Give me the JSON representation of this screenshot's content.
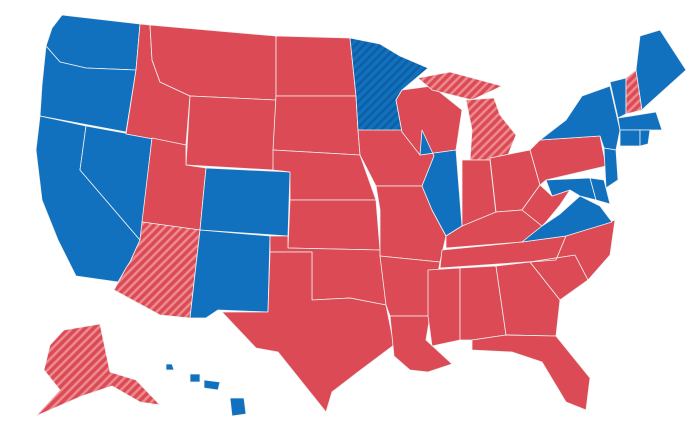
{
  "colors": {
    "red": "#dc4b55",
    "blue": "#1271bf",
    "red_hatch_stripe": "#ec8a8f",
    "blue_hatch_stripe": "#0d5ea3",
    "border": "#f2f2f2"
  },
  "states": [
    {
      "id": "WA",
      "party": "blue",
      "hatched": false
    },
    {
      "id": "OR",
      "party": "blue",
      "hatched": false
    },
    {
      "id": "CA",
      "party": "blue",
      "hatched": false
    },
    {
      "id": "NV",
      "party": "blue",
      "hatched": false
    },
    {
      "id": "ID",
      "party": "red",
      "hatched": false
    },
    {
      "id": "MT",
      "party": "red",
      "hatched": false
    },
    {
      "id": "WY",
      "party": "red",
      "hatched": false
    },
    {
      "id": "UT",
      "party": "red",
      "hatched": false
    },
    {
      "id": "AZ",
      "party": "red",
      "hatched": true
    },
    {
      "id": "CO",
      "party": "blue",
      "hatched": false
    },
    {
      "id": "NM",
      "party": "blue",
      "hatched": false
    },
    {
      "id": "ND",
      "party": "red",
      "hatched": false
    },
    {
      "id": "SD",
      "party": "red",
      "hatched": false
    },
    {
      "id": "NE",
      "party": "red",
      "hatched": false
    },
    {
      "id": "KS",
      "party": "red",
      "hatched": false
    },
    {
      "id": "OK",
      "party": "red",
      "hatched": false
    },
    {
      "id": "TX",
      "party": "red",
      "hatched": false
    },
    {
      "id": "MN",
      "party": "blue",
      "hatched": true
    },
    {
      "id": "IA",
      "party": "red",
      "hatched": false
    },
    {
      "id": "MO",
      "party": "red",
      "hatched": false
    },
    {
      "id": "AR",
      "party": "red",
      "hatched": false
    },
    {
      "id": "LA",
      "party": "red",
      "hatched": false
    },
    {
      "id": "WI",
      "party": "red",
      "hatched": false
    },
    {
      "id": "MI",
      "party": "red",
      "hatched": true
    },
    {
      "id": "IL",
      "party": "blue",
      "hatched": false
    },
    {
      "id": "IN",
      "party": "red",
      "hatched": false
    },
    {
      "id": "OH",
      "party": "red",
      "hatched": false
    },
    {
      "id": "KY",
      "party": "red",
      "hatched": false
    },
    {
      "id": "TN",
      "party": "red",
      "hatched": false
    },
    {
      "id": "MS",
      "party": "red",
      "hatched": false
    },
    {
      "id": "AL",
      "party": "red",
      "hatched": false
    },
    {
      "id": "GA",
      "party": "red",
      "hatched": false
    },
    {
      "id": "FL",
      "party": "red",
      "hatched": false
    },
    {
      "id": "SC",
      "party": "red",
      "hatched": false
    },
    {
      "id": "NC",
      "party": "red",
      "hatched": false
    },
    {
      "id": "VA",
      "party": "blue",
      "hatched": false
    },
    {
      "id": "WV",
      "party": "red",
      "hatched": false
    },
    {
      "id": "PA",
      "party": "red",
      "hatched": false
    },
    {
      "id": "NY",
      "party": "blue",
      "hatched": false
    },
    {
      "id": "NJ",
      "party": "blue",
      "hatched": false
    },
    {
      "id": "MD",
      "party": "blue",
      "hatched": false
    },
    {
      "id": "DE",
      "party": "blue",
      "hatched": false
    },
    {
      "id": "VT",
      "party": "blue",
      "hatched": false
    },
    {
      "id": "NH",
      "party": "red",
      "hatched": true
    },
    {
      "id": "ME",
      "party": "blue",
      "hatched": false
    },
    {
      "id": "MA",
      "party": "blue",
      "hatched": false
    },
    {
      "id": "CT",
      "party": "blue",
      "hatched": false
    },
    {
      "id": "RI",
      "party": "blue",
      "hatched": false
    },
    {
      "id": "AK",
      "party": "red",
      "hatched": true
    },
    {
      "id": "HI",
      "party": "blue",
      "hatched": false
    }
  ]
}
